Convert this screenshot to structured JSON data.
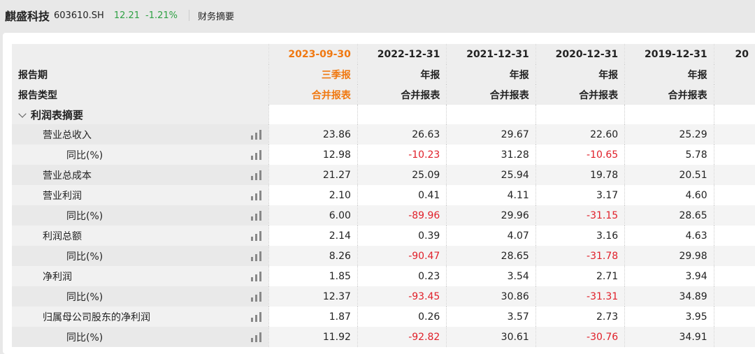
{
  "header": {
    "stock_name": "麒盛科技",
    "stock_code": "603610.SH",
    "price": "12.21",
    "change_pct": "-1.21%",
    "tab": "财务摘要"
  },
  "colors": {
    "current_period": "#f07810",
    "negative": "#e0202a",
    "price": "#2ea043"
  },
  "table": {
    "row_labels": {
      "period": "报告期",
      "type": "报告类型"
    },
    "columns": [
      {
        "date": "2023-09-30",
        "period": "三季报",
        "type": "合并报表"
      },
      {
        "date": "2022-12-31",
        "period": "年报",
        "type": "合并报表"
      },
      {
        "date": "2021-12-31",
        "period": "年报",
        "type": "合并报表"
      },
      {
        "date": "2020-12-31",
        "period": "年报",
        "type": "合并报表"
      },
      {
        "date": "2019-12-31",
        "period": "年报",
        "type": "合并报表"
      },
      {
        "date": "20",
        "period": "",
        "type": ""
      }
    ],
    "section": "利润表摘要",
    "rows": [
      {
        "label": "营业总收入",
        "level": 1,
        "values": [
          "23.86",
          "26.63",
          "29.67",
          "22.60",
          "25.29"
        ]
      },
      {
        "label": "同比(%)",
        "level": 2,
        "values": [
          "12.98",
          "-10.23",
          "31.28",
          "-10.65",
          "5.78"
        ]
      },
      {
        "label": "营业总成本",
        "level": 1,
        "values": [
          "21.27",
          "25.09",
          "25.94",
          "19.78",
          "20.51"
        ]
      },
      {
        "label": "营业利润",
        "level": 1,
        "values": [
          "2.10",
          "0.41",
          "4.11",
          "3.17",
          "4.60"
        ]
      },
      {
        "label": "同比(%)",
        "level": 2,
        "values": [
          "6.00",
          "-89.96",
          "29.96",
          "-31.15",
          "28.65"
        ]
      },
      {
        "label": "利润总额",
        "level": 1,
        "values": [
          "2.14",
          "0.39",
          "4.07",
          "3.16",
          "4.63"
        ]
      },
      {
        "label": "同比(%)",
        "level": 2,
        "values": [
          "8.26",
          "-90.47",
          "28.65",
          "-31.78",
          "29.98"
        ]
      },
      {
        "label": "净利润",
        "level": 1,
        "values": [
          "1.85",
          "0.23",
          "3.54",
          "2.71",
          "3.94"
        ]
      },
      {
        "label": "同比(%)",
        "level": 2,
        "values": [
          "12.37",
          "-93.45",
          "30.86",
          "-31.31",
          "34.89"
        ]
      },
      {
        "label": "归属母公司股东的净利润",
        "level": 1,
        "values": [
          "1.87",
          "0.26",
          "3.57",
          "2.73",
          "3.95"
        ]
      },
      {
        "label": "同比(%)",
        "level": 2,
        "values": [
          "11.92",
          "-92.82",
          "30.61",
          "-30.76",
          "34.91"
        ]
      }
    ]
  }
}
